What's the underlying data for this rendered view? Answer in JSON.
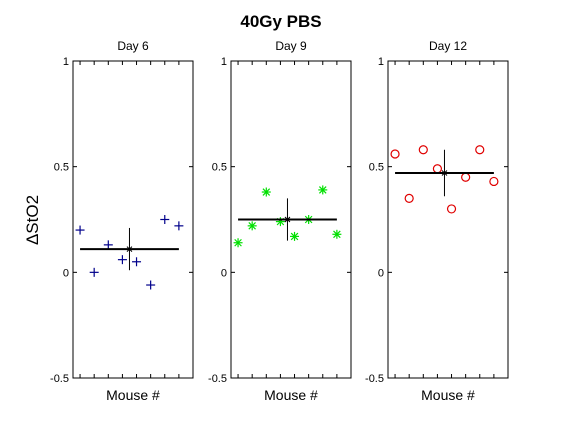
{
  "figure": {
    "suptitle": "40Gy PBS",
    "ylabel": "ΔStO2"
  },
  "chart_data": [
    {
      "type": "scatter",
      "title": "Day 6",
      "xlabel": "Mouse #",
      "ylabel": "ΔStO2",
      "ylim": [
        -0.5,
        1
      ],
      "yticks": [
        "-0.5",
        "0",
        "0.5",
        "1"
      ],
      "x": [
        1,
        2,
        3,
        4,
        5,
        6,
        7,
        8
      ],
      "values": [
        0.2,
        0.0,
        0.13,
        0.06,
        0.05,
        -0.06,
        0.25,
        0.22
      ],
      "marker": "plus",
      "color": "#00008b",
      "mean": 0.11,
      "error": 0.1
    },
    {
      "type": "scatter",
      "title": "Day 9",
      "xlabel": "Mouse #",
      "ylabel": "",
      "ylim": [
        -0.5,
        1
      ],
      "yticks": [
        "-0.5",
        "0",
        "0.5",
        "1"
      ],
      "x": [
        1,
        2,
        3,
        4,
        5,
        6,
        7,
        8
      ],
      "values": [
        0.14,
        0.22,
        0.38,
        0.24,
        0.17,
        0.25,
        0.39,
        0.18
      ],
      "marker": "asterisk",
      "color": "#00e000",
      "mean": 0.25,
      "error": 0.1
    },
    {
      "type": "scatter",
      "title": "Day 12",
      "xlabel": "Mouse #",
      "ylabel": "",
      "ylim": [
        -0.5,
        1
      ],
      "yticks": [
        "-0.5",
        "0",
        "0.5",
        "1"
      ],
      "x": [
        1,
        2,
        3,
        4,
        5,
        6,
        7,
        8
      ],
      "values": [
        0.56,
        0.35,
        0.58,
        0.49,
        0.3,
        0.45,
        0.58,
        0.43
      ],
      "marker": "circle",
      "color": "#e00000",
      "mean": 0.47,
      "error": 0.11
    }
  ]
}
